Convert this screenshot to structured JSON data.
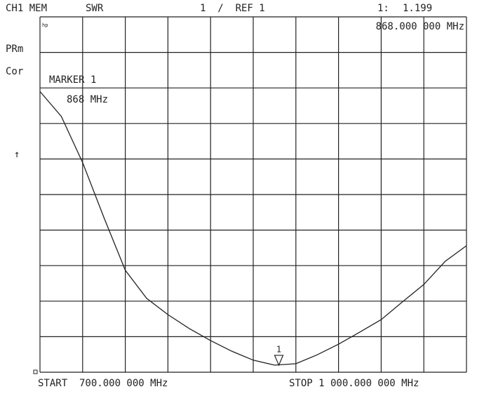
{
  "chart_data": {
    "type": "line",
    "channel": "CH1 MEM",
    "format": "SWR",
    "scale_label": "1  /  REF 1",
    "status_1": "PRm",
    "status_2": "Cor",
    "logo": "hp",
    "ref_arrow": "↑",
    "start_label": "START  700.000 000 MHz",
    "stop_label": "STOP 1 000.000 000 MHz",
    "marker": {
      "label": "1",
      "readout_name": "1:",
      "x": 868,
      "value": 1.199,
      "x_label": "868.000 000 MHz",
      "box_title": "MARKER 1",
      "box_x_label": "868 MHz"
    },
    "x": [
      700,
      715,
      730,
      745,
      760,
      775,
      790,
      805,
      820,
      835,
      850,
      865,
      880,
      895,
      910,
      925,
      940,
      955,
      970,
      985,
      1000
    ],
    "series": [
      {
        "name": "SWR",
        "color": "#222222",
        "values": [
          8.9,
          8.2,
          6.9,
          5.35,
          3.87,
          3.08,
          2.62,
          2.23,
          1.89,
          1.59,
          1.34,
          1.2,
          1.24,
          1.49,
          1.79,
          2.13,
          2.48,
          2.98,
          3.47,
          4.12,
          4.56
        ]
      }
    ],
    "xlim": [
      700,
      1000
    ],
    "ylim": [
      1,
      11
    ],
    "xticks": [
      700,
      730,
      760,
      790,
      820,
      850,
      880,
      910,
      940,
      970,
      1000
    ],
    "yticks": [
      1,
      2,
      3,
      4,
      5,
      6,
      7,
      8,
      9,
      10,
      11
    ],
    "grid": true
  }
}
